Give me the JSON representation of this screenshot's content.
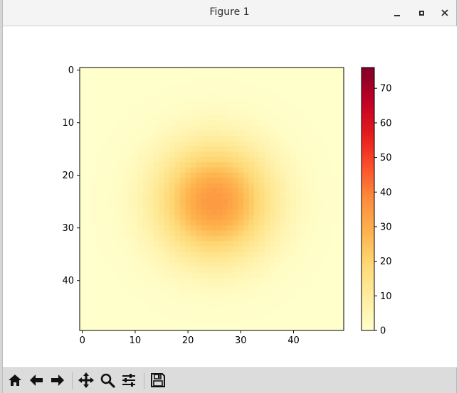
{
  "window": {
    "title": "Figure 1"
  },
  "toolbar": {
    "buttons": [
      {
        "name": "home-icon"
      },
      {
        "name": "back-arrow-icon"
      },
      {
        "name": "forward-arrow-icon"
      },
      {
        "name": "pan-icon"
      },
      {
        "name": "zoom-icon"
      },
      {
        "name": "configure-subplots-icon"
      },
      {
        "name": "save-icon"
      }
    ]
  },
  "chart_data": {
    "type": "heatmap",
    "title": "",
    "xlabel": "",
    "ylabel": "",
    "grid_size": [
      50,
      50
    ],
    "peak_center": [
      25,
      25
    ],
    "peak_value": 35,
    "sigma": 7.5,
    "x_ticks": [
      "0",
      "10",
      "20",
      "30",
      "40"
    ],
    "y_ticks": [
      "0",
      "10",
      "20",
      "30",
      "40"
    ],
    "xlim": [
      -0.5,
      49.5
    ],
    "ylim": [
      49.5,
      -0.5
    ],
    "colorbar": {
      "colormap": "YlOrRd",
      "range": [
        0,
        76
      ],
      "ticks": [
        "0",
        "10",
        "20",
        "30",
        "40",
        "50",
        "60",
        "70"
      ]
    },
    "grid": false
  }
}
